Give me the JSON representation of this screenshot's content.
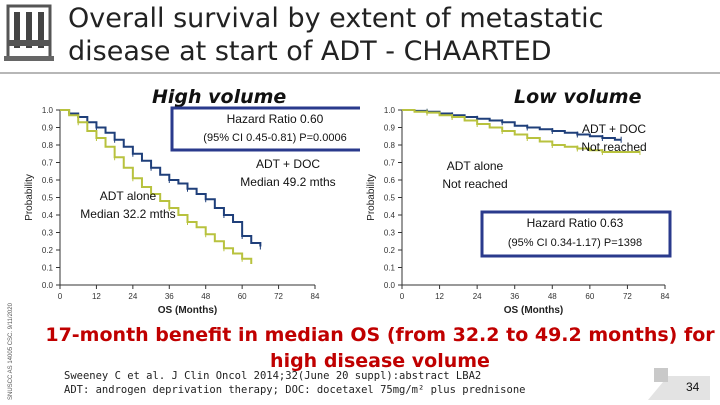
{
  "slide": {
    "title": "Overall survival by extent of metastatic disease at start of ADT - CHAARTED",
    "side_text": "SNUSCC AS 14005 CSC. 9/11/2020",
    "headline": "17-month benefit in median OS (from 32.2 to 49.2 months) for high disease volume",
    "ref1": "Sweeney C et al. J Clin Oncol 2014;32(June 20 suppl):abstract LBA2",
    "ref2": "ADT: androgen deprivation therapy; DOC: docetaxel 75mg/m² plus prednisone",
    "page_number": "34",
    "colors": {
      "adt_doc": "#1f3f7a",
      "adt_alone": "#b8c23e",
      "headline": "#c00000",
      "hr_box": "#2a3a8c"
    }
  },
  "chart_data": [
    {
      "id": "high",
      "type": "line",
      "title": "High volume",
      "xlabel": "OS (Months)",
      "ylabel": "Probability",
      "x_ticks": [
        0,
        12,
        24,
        36,
        48,
        60,
        72,
        84
      ],
      "x_tick_labels": [
        "0",
        "12",
        "24",
        "36",
        "48",
        "60",
        "72",
        "84"
      ],
      "y_ticks": [
        0.0,
        0.1,
        0.2,
        0.3,
        0.4,
        0.5,
        0.6,
        0.7,
        0.8,
        0.9,
        1.0
      ],
      "y_tick_labels": [
        "0.0",
        "0.1",
        "0.2",
        "0.3",
        "0.4",
        "0.5",
        "0.6",
        "0.7",
        "0.8",
        "0.9",
        "1.0"
      ],
      "xlim": [
        0,
        84
      ],
      "ylim": [
        0,
        1
      ],
      "series": [
        {
          "name": "ADT + DOC",
          "color": "#1f3f7a",
          "x": [
            0,
            3,
            6,
            9,
            12,
            15,
            18,
            21,
            24,
            27,
            30,
            33,
            36,
            39,
            42,
            45,
            48,
            51,
            54,
            57,
            60,
            63,
            66
          ],
          "y": [
            1.0,
            0.98,
            0.96,
            0.93,
            0.9,
            0.87,
            0.83,
            0.79,
            0.75,
            0.71,
            0.67,
            0.63,
            0.6,
            0.58,
            0.55,
            0.52,
            0.49,
            0.44,
            0.4,
            0.36,
            0.28,
            0.24,
            0.22
          ]
        },
        {
          "name": "ADT alone",
          "color": "#b8c23e",
          "x": [
            0,
            3,
            6,
            9,
            12,
            15,
            18,
            21,
            24,
            27,
            30,
            33,
            36,
            39,
            42,
            45,
            48,
            51,
            54,
            57,
            60,
            63
          ],
          "y": [
            1.0,
            0.97,
            0.93,
            0.88,
            0.84,
            0.79,
            0.73,
            0.67,
            0.61,
            0.56,
            0.52,
            0.48,
            0.44,
            0.4,
            0.36,
            0.33,
            0.29,
            0.25,
            0.21,
            0.18,
            0.15,
            0.12
          ]
        }
      ],
      "annotations": {
        "hr_line1": "Hazard Ratio 0.60",
        "hr_line2": "(95% CI 0.45-0.81) P=0.0006",
        "doc_line1": "ADT + DOC",
        "doc_line2": "Median 49.2 mths",
        "alone_line1": "ADT alone",
        "alone_line2": "Median 32.2 mths"
      }
    },
    {
      "id": "low",
      "type": "line",
      "title": "Low volume",
      "xlabel": "OS (Months)",
      "ylabel": "Probability",
      "x_ticks": [
        0,
        12,
        24,
        36,
        48,
        60,
        72,
        84
      ],
      "x_tick_labels": [
        "0",
        "12",
        "24",
        "36",
        "48",
        "60",
        "72",
        "84"
      ],
      "y_ticks": [
        0.0,
        0.1,
        0.2,
        0.3,
        0.4,
        0.5,
        0.6,
        0.7,
        0.8,
        0.9,
        1.0
      ],
      "y_tick_labels": [
        "0.0",
        "0.1",
        "0.2",
        "0.3",
        "0.4",
        "0.5",
        "0.6",
        "0.7",
        "0.8",
        "0.9",
        "1.0"
      ],
      "xlim": [
        0,
        84
      ],
      "ylim": [
        0,
        1
      ],
      "series": [
        {
          "name": "ADT + DOC",
          "color": "#1f3f7a",
          "x": [
            0,
            4,
            8,
            12,
            16,
            20,
            24,
            28,
            32,
            36,
            40,
            44,
            48,
            52,
            56,
            60,
            64,
            68,
            70
          ],
          "y": [
            1.0,
            0.995,
            0.99,
            0.98,
            0.97,
            0.96,
            0.95,
            0.94,
            0.93,
            0.91,
            0.9,
            0.89,
            0.88,
            0.87,
            0.86,
            0.85,
            0.84,
            0.83,
            0.83
          ]
        },
        {
          "name": "ADT alone",
          "color": "#b8c23e",
          "x": [
            0,
            4,
            8,
            12,
            16,
            20,
            24,
            28,
            32,
            36,
            40,
            44,
            48,
            52,
            56,
            60,
            64,
            70,
            76
          ],
          "y": [
            1.0,
            0.99,
            0.985,
            0.97,
            0.96,
            0.94,
            0.92,
            0.9,
            0.88,
            0.86,
            0.84,
            0.82,
            0.8,
            0.79,
            0.78,
            0.77,
            0.76,
            0.76,
            0.76
          ]
        }
      ],
      "annotations": {
        "hr_line1": "Hazard Ratio 0.63",
        "hr_line2": "(95% CI 0.34-1.17) P=1398",
        "doc_line1": "ADT + DOC",
        "doc_line2": "Not reached",
        "alone_line1": "ADT alone",
        "alone_line2": "Not reached"
      }
    }
  ]
}
